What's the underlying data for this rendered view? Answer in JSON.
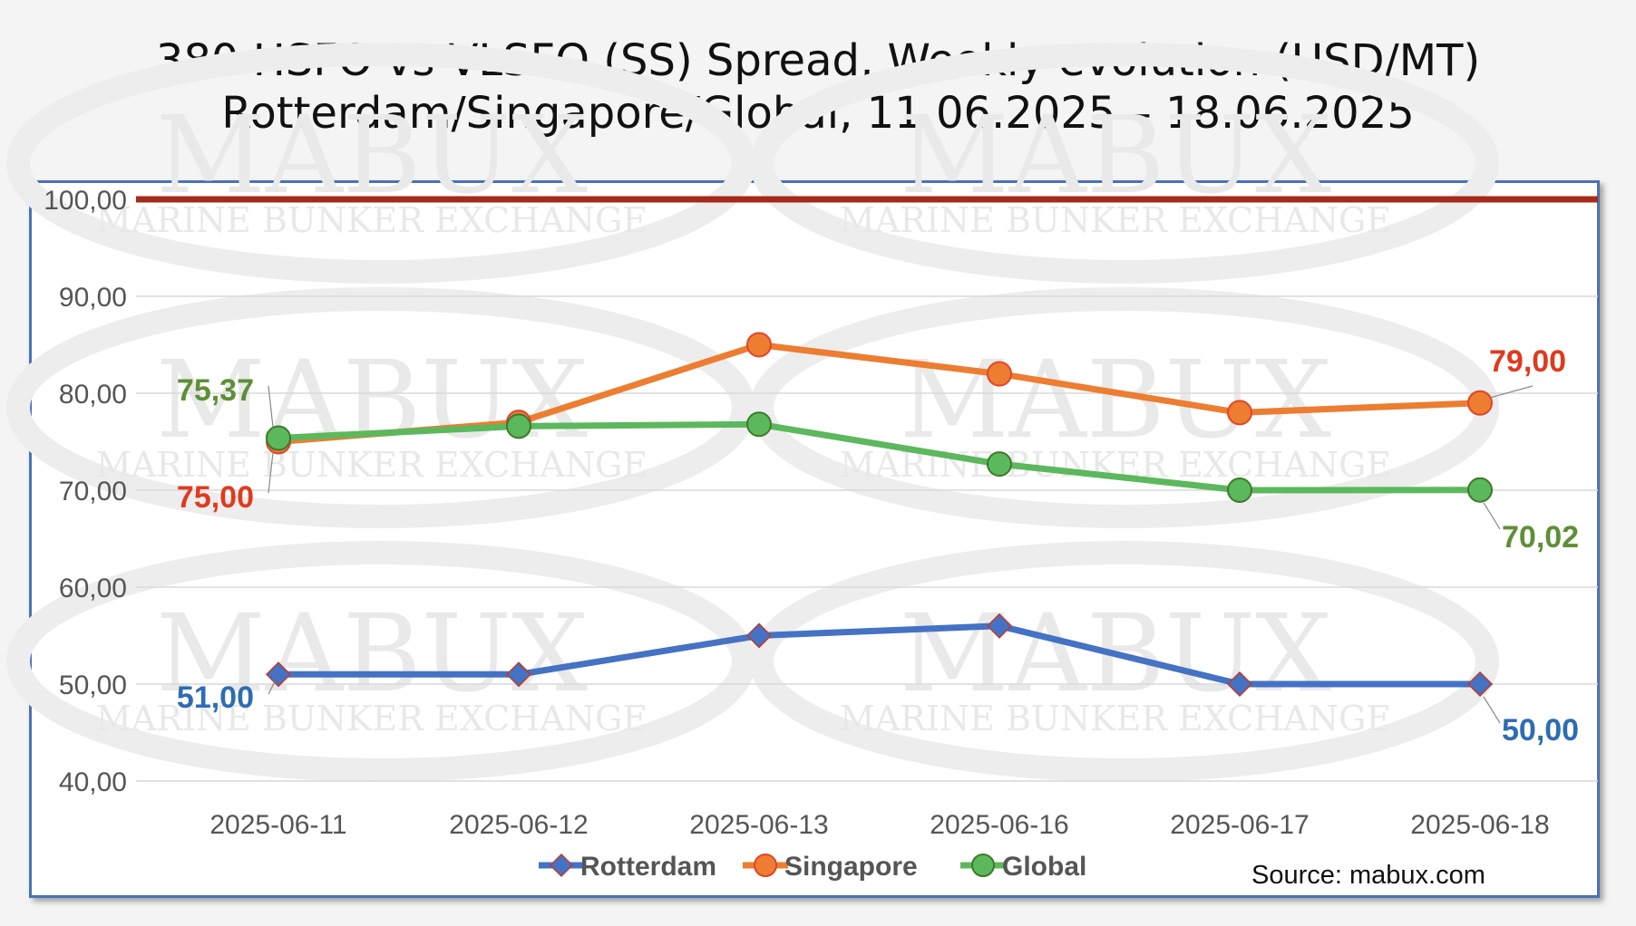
{
  "title": {
    "line1": "380 HSFO vs VLSFO (SS) Spread, Weekly evolution (USD/MT)",
    "line2": "Rotterdam/Singapore/Global, 11.06.2025 – 18.06.2025"
  },
  "source": "Source: mabux.com",
  "watermark": {
    "brand": "MABUX",
    "tagline": "MARINE BUNKER EXCHANGE"
  },
  "colors": {
    "rotterdam": "#4472c4",
    "singapore": "#ed7d31",
    "global": "#5cb85c",
    "threshold": "#a52a1a",
    "rotterdam_label": "#2e6cb4",
    "singapore_label": "#e03a1e",
    "global_label": "#5e8f36"
  },
  "chart_data": {
    "type": "line",
    "title": "380 HSFO vs VLSFO (SS) Spread, Weekly evolution (USD/MT) — Rotterdam/Singapore/Global, 11.06.2025 – 18.06.2025",
    "xlabel": "",
    "ylabel": "",
    "categories": [
      "2025-06-11",
      "2025-06-12",
      "2025-06-13",
      "2025-06-16",
      "2025-06-17",
      "2025-06-18"
    ],
    "ylim": [
      40,
      100
    ],
    "yticks": [
      "40,00",
      "50,00",
      "60,00",
      "70,00",
      "80,00",
      "90,00",
      "100,00"
    ],
    "grid": true,
    "legend": "bottom",
    "reference_line": {
      "value": 100
    },
    "series": [
      {
        "name": "Rotterdam",
        "marker": "diamond",
        "values": [
          51,
          51,
          55,
          56,
          50,
          50
        ],
        "first_label": "51,00",
        "last_label": "50,00"
      },
      {
        "name": "Singapore",
        "marker": "circle",
        "values": [
          75,
          77,
          85,
          82,
          78,
          79
        ],
        "first_label": "75,00",
        "last_label": "79,00"
      },
      {
        "name": "Global",
        "marker": "circle",
        "values": [
          75.37,
          76.6,
          76.8,
          72.7,
          70.0,
          70.02
        ],
        "first_label": "75,37",
        "last_label": "70,02"
      }
    ]
  }
}
